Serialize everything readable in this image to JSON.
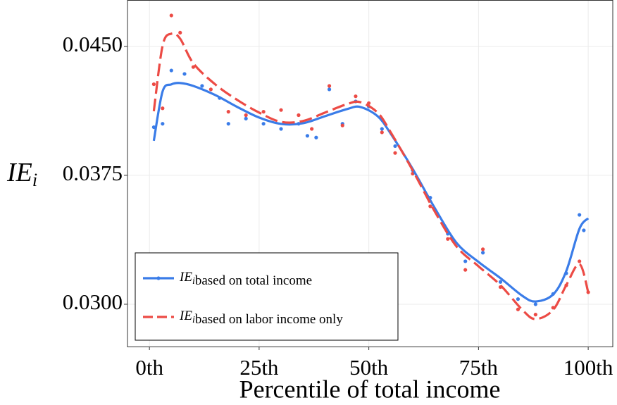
{
  "chart_data": {
    "type": "line",
    "xlabel": "Percentile of total income",
    "ylabel": {
      "symbol": "IE",
      "sub": "i"
    },
    "xlim": [
      -5,
      105.6
    ],
    "ylim": [
      0.02754,
      0.0477
    ],
    "xticks": [
      {
        "value": 0,
        "label": "0th"
      },
      {
        "value": 25,
        "label": "25th"
      },
      {
        "value": 50,
        "label": "50th"
      },
      {
        "value": 75,
        "label": "75th"
      },
      {
        "value": 100,
        "label": "100th"
      }
    ],
    "yticks": [
      {
        "value": 0.03,
        "label": "0.0300"
      },
      {
        "value": 0.0375,
        "label": "0.0375"
      },
      {
        "value": 0.045,
        "label": "0.0450"
      }
    ],
    "grid": true,
    "legend": "bottom-left",
    "series": [
      {
        "symbol": "IE",
        "sub": "i",
        "name": "based on total income",
        "color": "#3a7ce8",
        "dash": false,
        "x": [
          1,
          3,
          5,
          7,
          10,
          15,
          20,
          25,
          30,
          35,
          40,
          45,
          48,
          52,
          55,
          60,
          65,
          70,
          75,
          80,
          85,
          88,
          92,
          95,
          98,
          100
        ],
        "values": [
          0.03951,
          0.04238,
          0.04279,
          0.04287,
          0.0427,
          0.04217,
          0.04148,
          0.04086,
          0.04049,
          0.04053,
          0.04094,
          0.04135,
          0.04148,
          0.04094,
          0.03992,
          0.03787,
          0.03561,
          0.03357,
          0.03246,
          0.03152,
          0.03049,
          0.03016,
          0.03057,
          0.03193,
          0.03439,
          0.035
        ],
        "dots_x": [
          1,
          3,
          5,
          8,
          12,
          16,
          18,
          22,
          26,
          30,
          34,
          36,
          38,
          41,
          44,
          47,
          50,
          53,
          56,
          60,
          64,
          68,
          72,
          76,
          80,
          84,
          88,
          92,
          95,
          98,
          99
        ],
        "dots": [
          0.0403,
          0.0405,
          0.0436,
          0.0434,
          0.0427,
          0.042,
          0.0405,
          0.0408,
          0.0405,
          0.0402,
          0.0405,
          0.0398,
          0.0397,
          0.0425,
          0.0405,
          0.0418,
          0.0415,
          0.0402,
          0.0392,
          0.0378,
          0.0362,
          0.0341,
          0.0325,
          0.033,
          0.0313,
          0.0303,
          0.03,
          0.0306,
          0.0318,
          0.0352,
          0.0343
        ]
      },
      {
        "symbol": "IE",
        "sub": "i",
        "name": "based on labor income only",
        "color": "#ec4b45",
        "dash": true,
        "x": [
          1,
          3,
          5,
          7,
          10,
          15,
          20,
          25,
          30,
          35,
          40,
          45,
          48,
          52,
          55,
          60,
          65,
          70,
          75,
          80,
          85,
          88,
          92,
          95,
          98,
          100
        ],
        "values": [
          0.04123,
          0.04504,
          0.04574,
          0.04545,
          0.04402,
          0.04279,
          0.04189,
          0.04115,
          0.04061,
          0.04066,
          0.04115,
          0.04164,
          0.04176,
          0.04115,
          0.04,
          0.03779,
          0.03541,
          0.03336,
          0.03221,
          0.03111,
          0.02967,
          0.02914,
          0.02967,
          0.03111,
          0.03234,
          0.0307
        ],
        "dots_x": [
          1,
          3,
          5,
          7,
          10,
          14,
          18,
          22,
          26,
          30,
          34,
          37,
          41,
          44,
          47,
          50,
          53,
          56,
          60,
          64,
          68,
          72,
          76,
          80,
          84,
          88,
          92,
          95,
          98,
          100
        ],
        "dots": [
          0.0428,
          0.0414,
          0.0468,
          0.0458,
          0.0438,
          0.0425,
          0.0412,
          0.041,
          0.0412,
          0.0413,
          0.041,
          0.0402,
          0.0427,
          0.0404,
          0.0421,
          0.0417,
          0.04,
          0.0388,
          0.0376,
          0.0357,
          0.0338,
          0.032,
          0.0332,
          0.031,
          0.0297,
          0.0294,
          0.0298,
          0.0311,
          0.0325,
          0.0307
        ]
      }
    ]
  }
}
